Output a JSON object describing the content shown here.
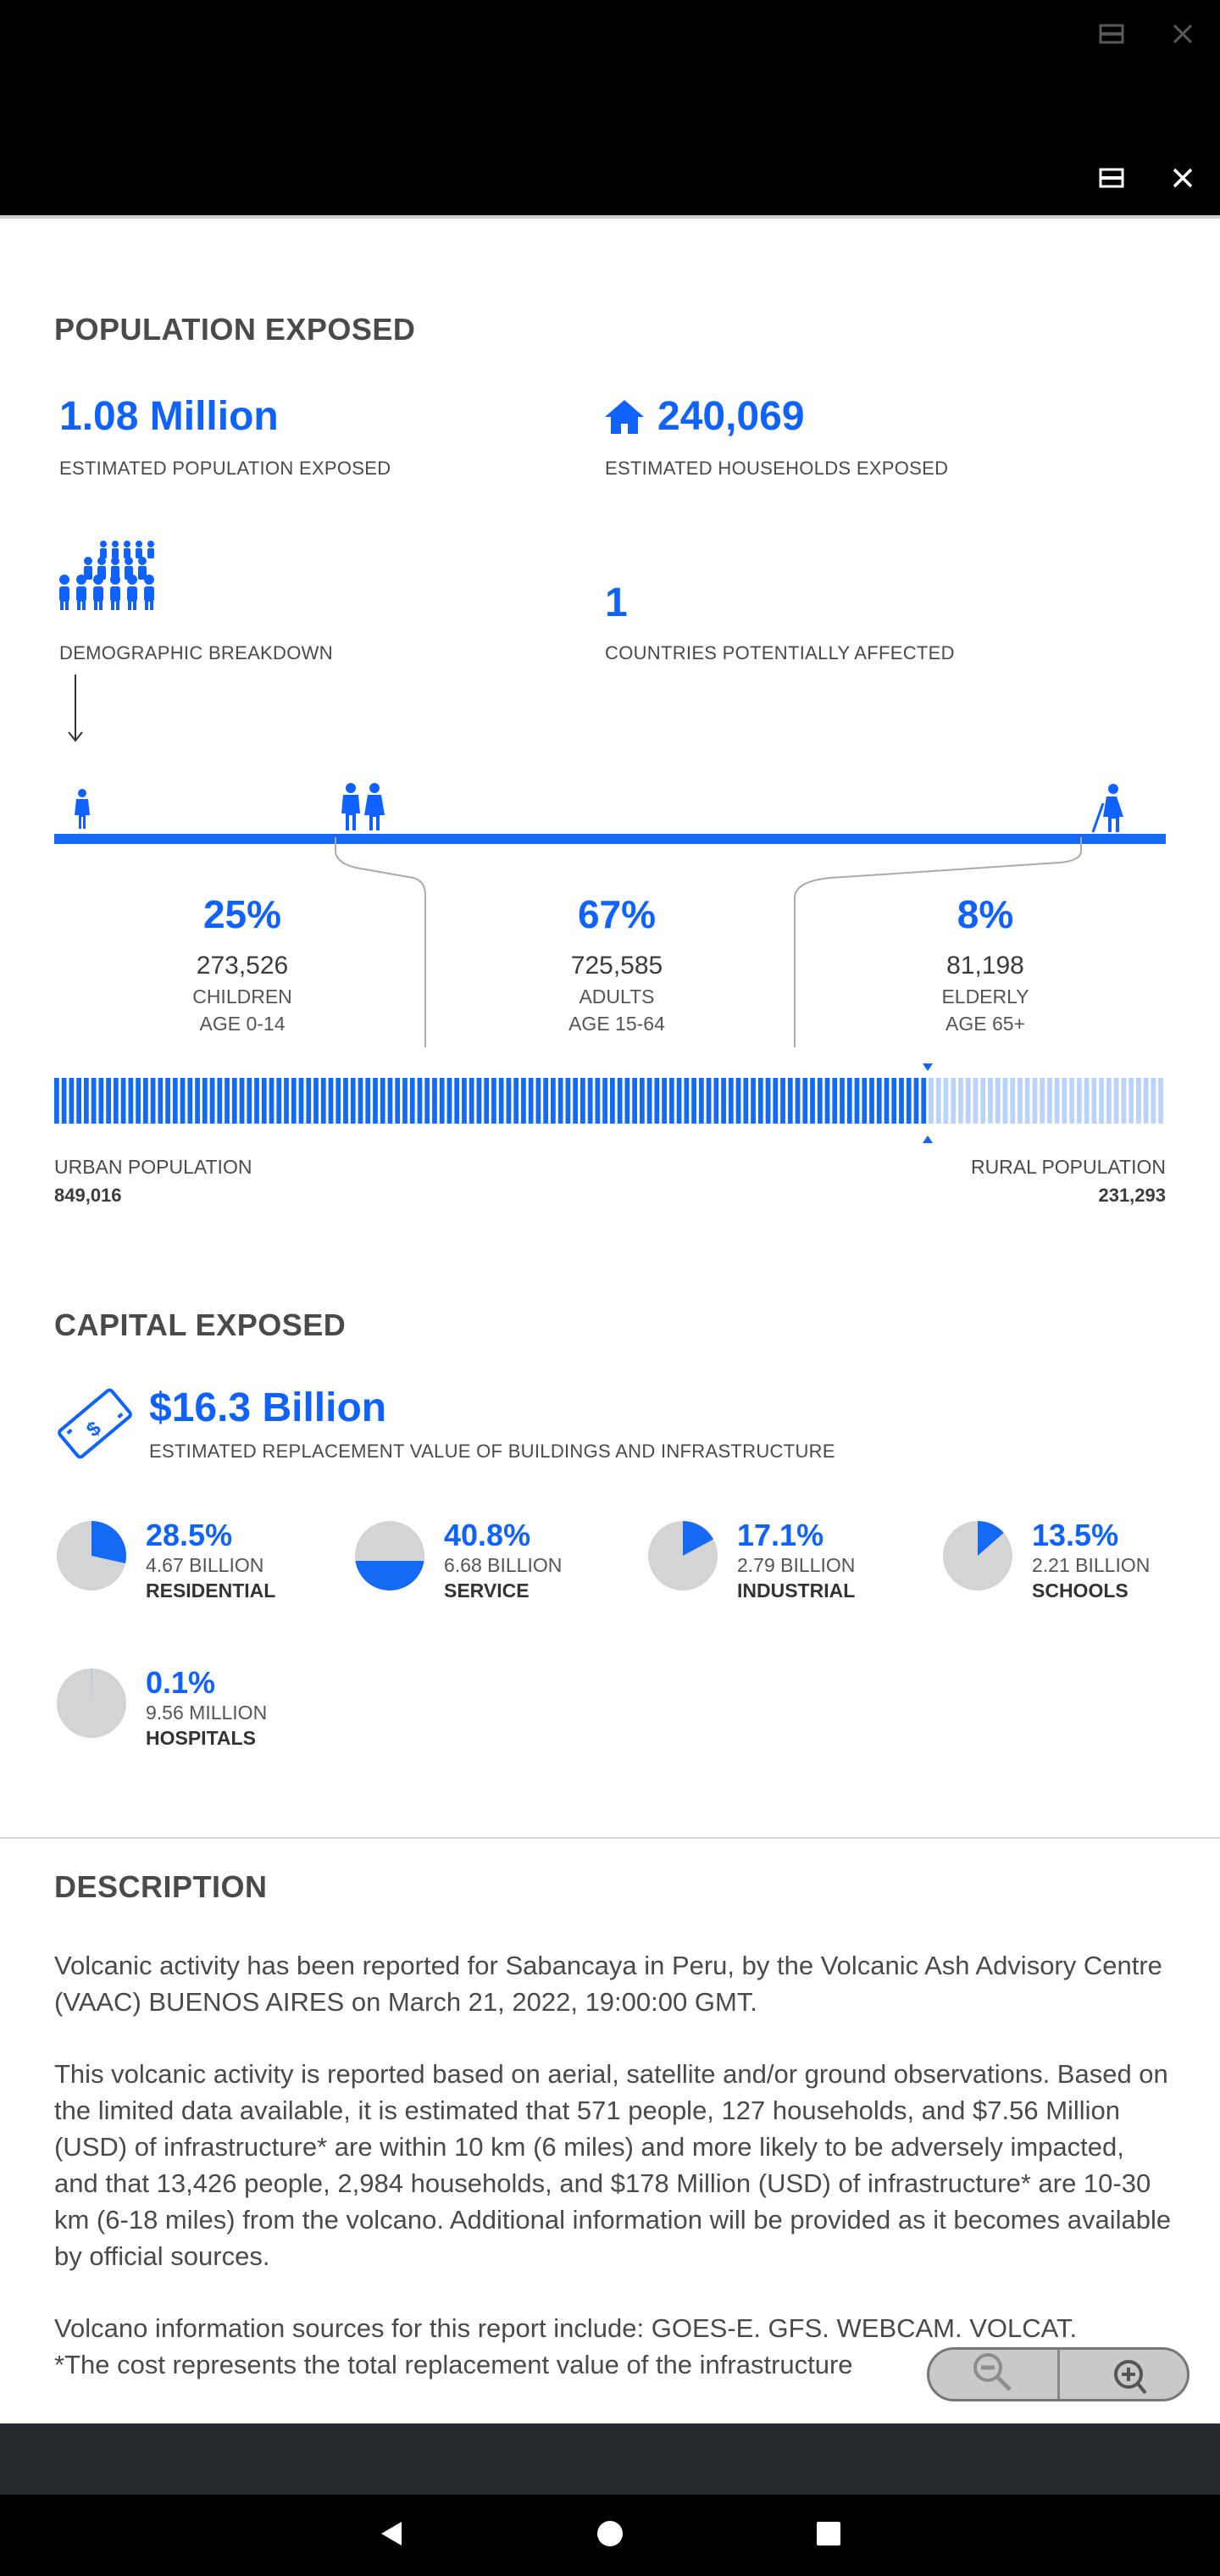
{
  "window": {
    "restore_icon": "restore-window-icon",
    "close_icon": "close-icon"
  },
  "population": {
    "title": "POPULATION EXPOSED",
    "estimated_population": "1.08 Million",
    "estimated_population_label": "ESTIMATED POPULATION EXPOSED",
    "households": "240,069",
    "households_label": "ESTIMATED HOUSEHOLDS EXPOSED",
    "demographic_label": "DEMOGRAPHIC BREAKDOWN",
    "countries": "1",
    "countries_label": "COUNTRIES POTENTIALLY AFFECTED",
    "groups": [
      {
        "pct": "25%",
        "count": "273,526",
        "name": "CHILDREN",
        "age": "AGE 0-14"
      },
      {
        "pct": "67%",
        "count": "725,585",
        "name": "ADULTS",
        "age": "AGE 15-64"
      },
      {
        "pct": "8%",
        "count": "81,198",
        "name": "ELDERLY",
        "age": "AGE 65+"
      }
    ],
    "urban_label": "URBAN POPULATION",
    "urban_value": "849,016",
    "rural_label": "RURAL POPULATION",
    "rural_value": "231,293",
    "urban_fraction": 0.786,
    "colors": {
      "accent": "#0f62fe",
      "bar": "#1469f5",
      "rural": "#b9d3fb",
      "pie_bg": "#d4d4d4"
    }
  },
  "capital": {
    "title": "CAPITAL EXPOSED",
    "value": "$16.3 Billion",
    "value_label": "ESTIMATED REPLACEMENT VALUE OF BUILDINGS AND INFRASTRUCTURE",
    "items": [
      {
        "pct": "28.5%",
        "value": "4.67 BILLION",
        "name": "RESIDENTIAL",
        "fraction": 0.285,
        "style": "slice"
      },
      {
        "pct": "40.8%",
        "value": "6.68 BILLION",
        "name": "SERVICE",
        "fraction": 0.408,
        "style": "fill"
      },
      {
        "pct": "17.1%",
        "value": "2.79 BILLION",
        "name": "INDUSTRIAL",
        "fraction": 0.171,
        "style": "slice"
      },
      {
        "pct": "13.5%",
        "value": "2.21 BILLION",
        "name": "SCHOOLS",
        "fraction": 0.135,
        "style": "slice"
      },
      {
        "pct": "0.1%",
        "value": "9.56 MILLION",
        "name": "HOSPITALS",
        "fraction": 0.001,
        "style": "slice"
      }
    ]
  },
  "description": {
    "title": "DESCRIPTION",
    "p1": "Volcanic activity has been reported for Sabancaya in Peru, by the Volcanic Ash Advisory Centre (VAAC) BUENOS AIRES on March 21, 2022, 19:00:00 GMT.",
    "p2": "This volcanic activity is reported based on aerial, satellite and/or ground observations. Based on the limited data available, it is estimated that 571 people, 127 households, and $7.56 Million (USD) of infrastructure* are within 10 km (6 miles) and more likely to be adversely impacted, and that 13,426 people, 2,984 households, and $178 Million (USD) of infrastructure* are 10-30 km (6-18 miles) from the volcano. Additional information will be provided as it becomes available by official sources.",
    "p3": "Volcano information sources for this report include: GOES-E. GFS. WEBCAM. VOLCAT.",
    "p4": "*The cost represents the total replacement value of the infrastructure"
  },
  "zoom": {
    "out_icon": "zoom-out-icon",
    "in_icon": "zoom-in-icon"
  },
  "navbar": {
    "back_icon": "back-icon",
    "home_icon": "home-icon",
    "recents_icon": "recents-icon"
  }
}
